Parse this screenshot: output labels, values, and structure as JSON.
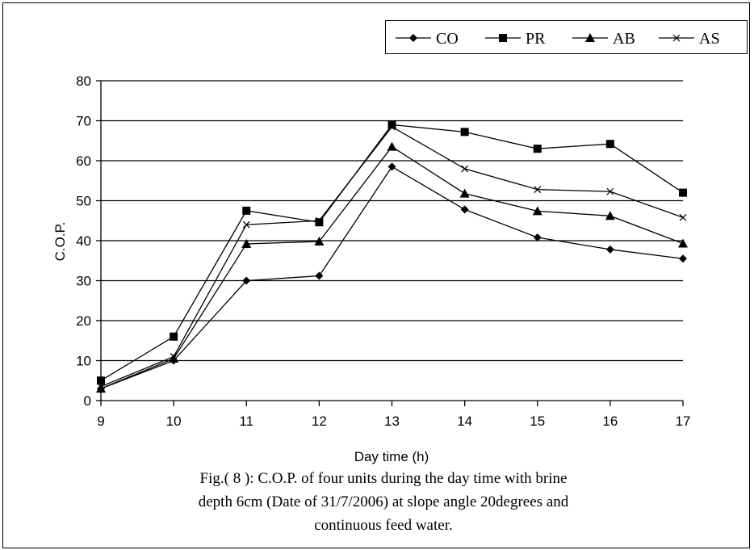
{
  "chart_data": {
    "type": "line",
    "x": [
      9,
      10,
      11,
      12,
      13,
      14,
      15,
      16,
      17
    ],
    "xlabel": "Day time (h)",
    "ylabel": "C.O.P.",
    "ylim": [
      0,
      80
    ],
    "yticks": [
      0,
      10,
      20,
      30,
      40,
      50,
      60,
      70,
      80
    ],
    "grid": "horizontal",
    "legend_position": "top-right",
    "series": [
      {
        "name": "CO",
        "marker": "diamond",
        "values": [
          3,
          10,
          30,
          31.2,
          58.5,
          47.8,
          40.8,
          37.8,
          35.5
        ]
      },
      {
        "name": "PR",
        "marker": "square",
        "values": [
          5,
          16,
          47.5,
          44.6,
          69,
          67.2,
          63,
          64.2,
          52
        ]
      },
      {
        "name": "AB",
        "marker": "triangle",
        "values": [
          3,
          10.5,
          39.2,
          39.8,
          63.5,
          51.8,
          47.4,
          46.2,
          39.3
        ]
      },
      {
        "name": "AS",
        "marker": "x",
        "values": [
          3.5,
          11,
          44,
          45,
          68.5,
          58,
          52.8,
          52.3,
          45.8
        ]
      }
    ]
  },
  "caption": {
    "line1": "Fig.( 8 ):  C.O.P.  of  four  units during the day time with brine",
    "line2": "depth 6cm (Date of 31/7/2006) at slope angle 20degrees and",
    "line3": "continuous feed water."
  },
  "colors": {
    "line": "#000000",
    "grid": "#000000",
    "background": "#ffffff"
  }
}
